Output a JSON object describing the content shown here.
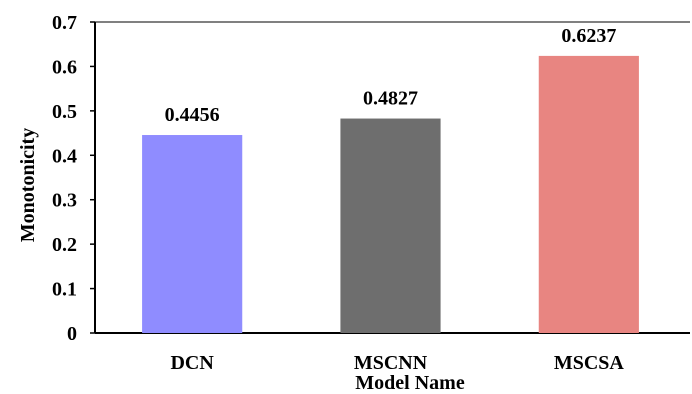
{
  "chart_data": {
    "type": "bar",
    "title": "",
    "xlabel": "Model Name",
    "ylabel": "Monotonicity",
    "categories": [
      "DCN",
      "MSCNN",
      "MSCSA"
    ],
    "values": [
      0.4456,
      0.4827,
      0.6237
    ],
    "value_labels": [
      "0.4456",
      "0.4827",
      "0.6237"
    ],
    "bar_colors": [
      "#8f8cff",
      "#6e6e6e",
      "#e88581"
    ],
    "ylim": [
      0,
      0.7
    ],
    "yticks": [
      0,
      0.1,
      0.2,
      0.3,
      0.4,
      0.5,
      0.6,
      0.7
    ],
    "ytick_labels": [
      "0",
      "0.1",
      "0.2",
      "0.3",
      "0.4",
      "0.5",
      "0.6",
      "0.7"
    ],
    "grid": false,
    "legend": "none"
  }
}
